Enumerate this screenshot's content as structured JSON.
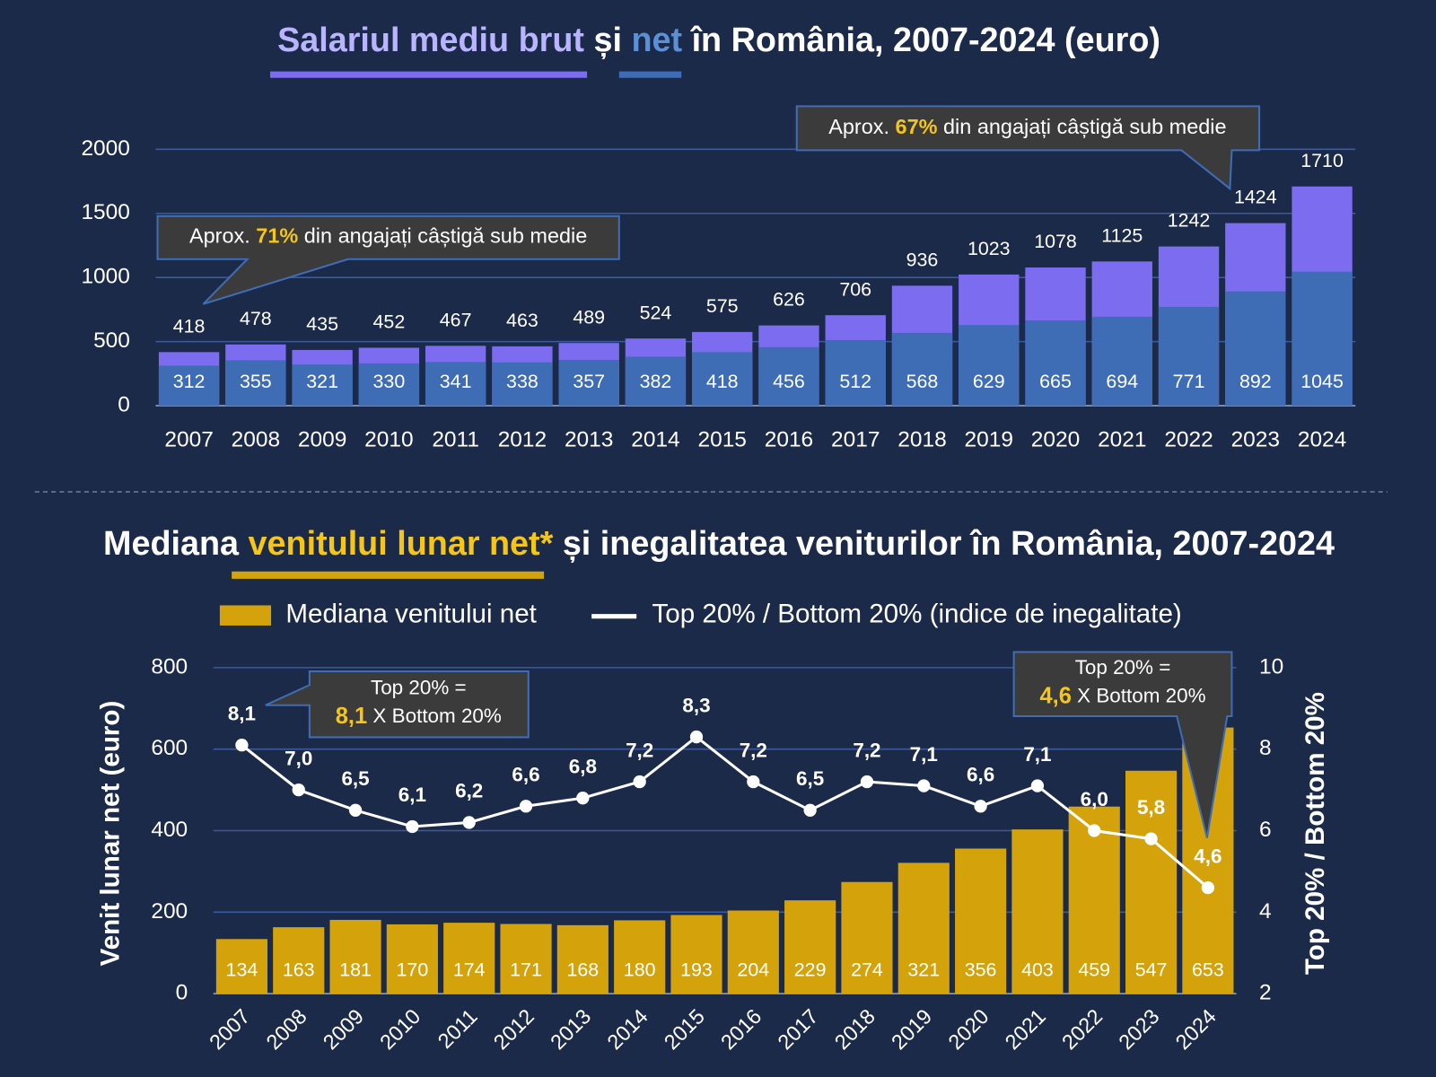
{
  "chart_data": [
    {
      "type": "bar",
      "title": [
        "Salariul mediu brut",
        " și ",
        "net",
        " în România, 2007-2024 (euro)"
      ],
      "categories": [
        "2007",
        "2008",
        "2009",
        "2010",
        "2011",
        "2012",
        "2013",
        "2014",
        "2015",
        "2016",
        "2017",
        "2018",
        "2019",
        "2020",
        "2021",
        "2022",
        "2023",
        "2024"
      ],
      "series": [
        {
          "color": "#7b6cf0",
          "values": [
            418,
            478,
            435,
            452,
            467,
            463,
            489,
            524,
            575,
            626,
            706,
            936,
            1023,
            1078,
            1125,
            1242,
            1424,
            1710
          ]
        },
        {
          "color": "#3f6db5",
          "values": [
            312,
            355,
            321,
            330,
            341,
            338,
            357,
            382,
            418,
            456,
            512,
            568,
            629,
            665,
            694,
            771,
            892,
            1045
          ]
        }
      ],
      "ylim": [
        0,
        2000
      ],
      "yticks": [
        0,
        500,
        1000,
        1500,
        2000
      ],
      "grid": true,
      "annotations": [
        [
          "Aprox. ",
          "71%",
          " din angajați câștigă sub medie"
        ],
        [
          "Aprox. ",
          "67%",
          " din angajați câștigă sub medie"
        ]
      ]
    },
    {
      "type": "bar",
      "title": [
        "Mediana ",
        "venitului lunar net*",
        " și inegalitatea veniturilor în România, 2007-2024"
      ],
      "categories": [
        "2007",
        "2008",
        "2009",
        "2010",
        "2011",
        "2012",
        "2013",
        "2014",
        "2015",
        "2016",
        "2017",
        "2018",
        "2019",
        "2020",
        "2021",
        "2022",
        "2023",
        "2024"
      ],
      "series": [
        {
          "name": "Mediana venitului net",
          "type": "bar",
          "color": "#d4a20a",
          "values": [
            134,
            163,
            181,
            170,
            174,
            171,
            168,
            180,
            193,
            204,
            229,
            274,
            321,
            356,
            403,
            459,
            547,
            653
          ]
        },
        {
          "name": "Top 20% / Bottom 20% (indice de inegalitate)",
          "type": "line",
          "axis": "y2",
          "color": "#ffffff",
          "values": [
            8.1,
            7.0,
            6.5,
            6.1,
            6.2,
            6.6,
            6.8,
            7.2,
            8.3,
            7.2,
            6.5,
            7.2,
            7.1,
            6.6,
            7.1,
            6.0,
            5.8,
            4.6
          ],
          "value_labels": [
            "8,1",
            "7,0",
            "6,5",
            "6,1",
            "6,2",
            "6,6",
            "6,8",
            "7,2",
            "8,3",
            "7,2",
            "6,5",
            "7,2",
            "7,1",
            "6,6",
            "7,1",
            "6,0",
            "5,8",
            "4,6"
          ]
        }
      ],
      "ylabel": "Venit lunar net (euro)",
      "y2label": "Top 20% / Bottom 20%",
      "ylim": [
        0,
        800
      ],
      "yticks": [
        0,
        200,
        400,
        600,
        800
      ],
      "y2lim": [
        2,
        10
      ],
      "y2ticks": [
        2,
        4,
        6,
        8,
        10
      ],
      "grid": true,
      "annotations": [
        [
          [
            "Top 20% ="
          ],
          [
            "8,1",
            " X Bottom 20%"
          ]
        ],
        [
          [
            "Top 20% ="
          ],
          [
            "4,6",
            " X Bottom 20%"
          ]
        ]
      ]
    }
  ]
}
